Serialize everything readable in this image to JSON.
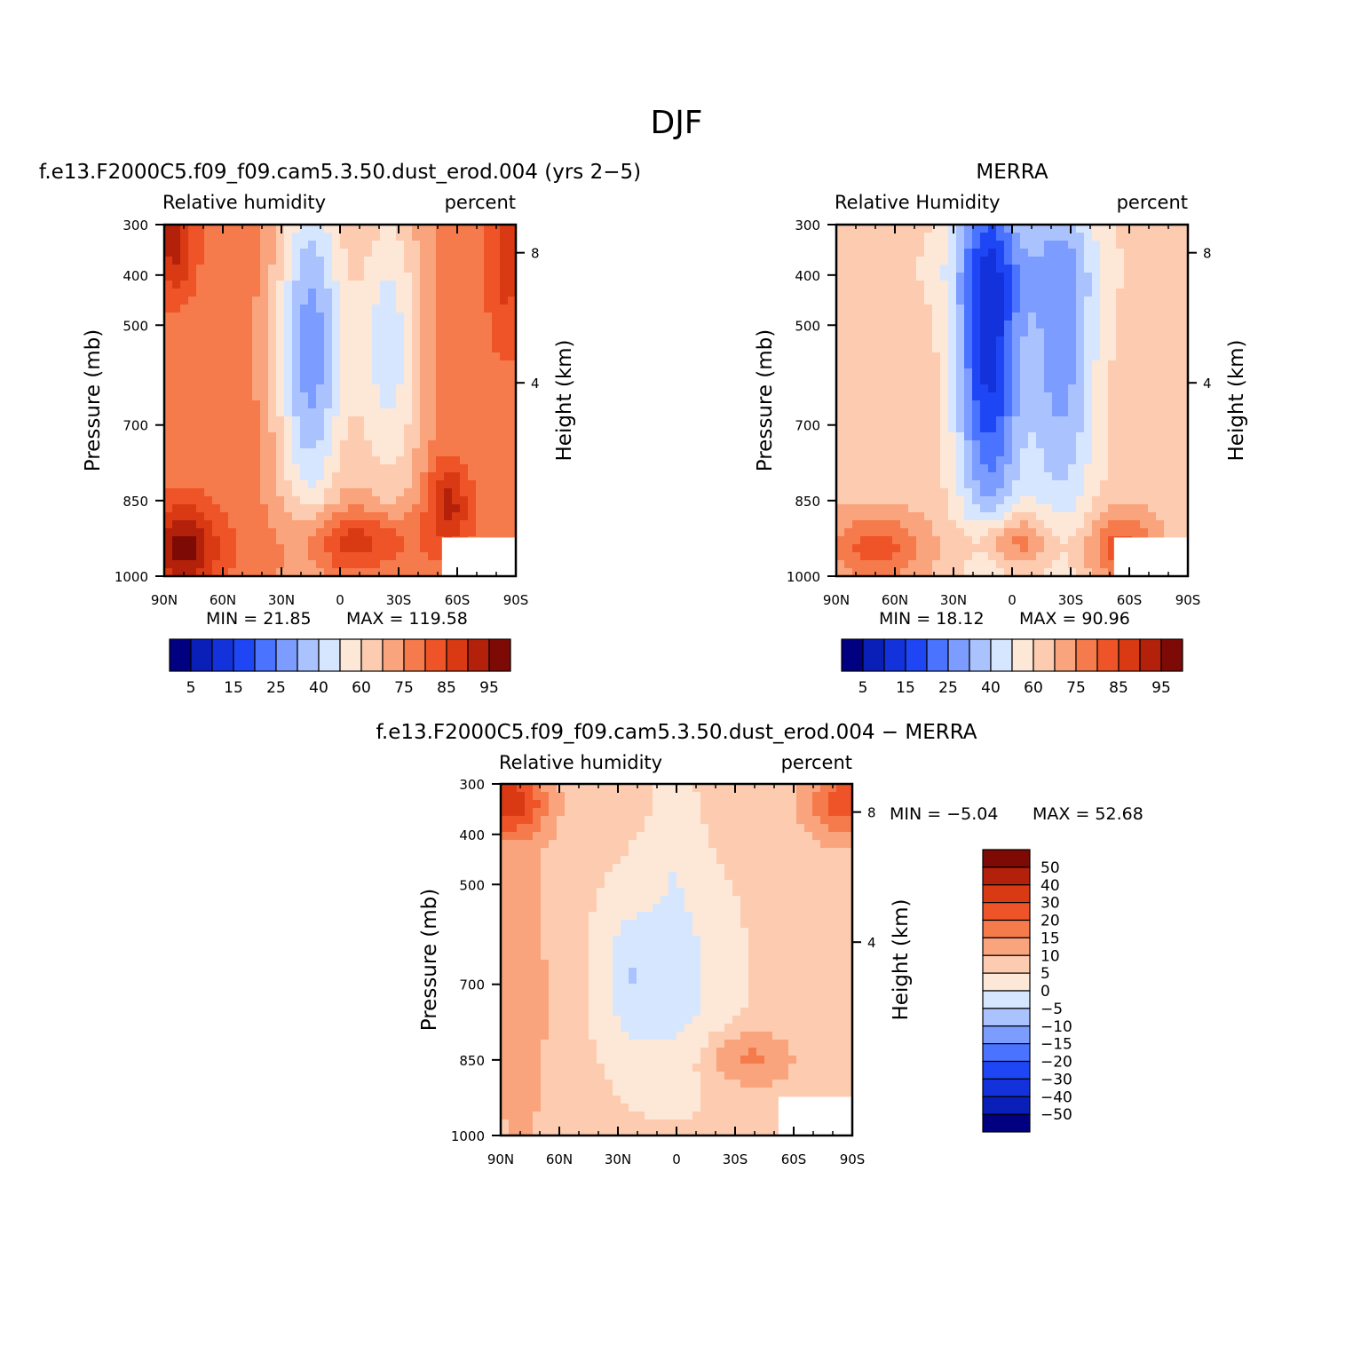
{
  "figure": {
    "title": "DJF"
  },
  "colors": {
    "rh_levels": [
      "#000080",
      "#0a1fb8",
      "#1432dc",
      "#1e46f5",
      "#4a74ff",
      "#7c9cff",
      "#aac3ff",
      "#d6e6ff",
      "#fde8d8",
      "#fccbb0",
      "#f9a47c",
      "#f57a4c",
      "#ee5428",
      "#d93a14",
      "#b4210a",
      "#7d0a05"
    ],
    "diff_levels": [
      "#000080",
      "#0a1fb8",
      "#1432dc",
      "#1e46f5",
      "#4a74ff",
      "#7c9cff",
      "#aac3ff",
      "#d6e6ff",
      "#fde8d8",
      "#fccbb0",
      "#f9a47c",
      "#f57a4c",
      "#ee5428",
      "#d93a14",
      "#b4210a",
      "#7d0a05"
    ]
  },
  "chart_data": [
    {
      "id": "model",
      "type": "heatmap",
      "title": "f.e13.F2000C5.f09_f09.cam5.3.50.dust_erod.004 (yrs 2−5)",
      "left_label": "Relative  humidity",
      "right_label": "percent",
      "xlabel": "",
      "ylabel": "Pressure  (mb)",
      "y2label": "Height  (km)",
      "x_ticks": [
        "90N",
        "60N",
        "30N",
        "0",
        "30S",
        "60S",
        "90S"
      ],
      "y_ticks": [
        "300",
        "400",
        "500",
        "700",
        "850",
        "1000"
      ],
      "y2_ticks": [
        "8",
        "4"
      ],
      "min_text": "MIN  =    21.85",
      "max_text": "MAX  =  119.58",
      "colorbar_labels": [
        "5",
        "15",
        "25",
        "40",
        "60",
        "75",
        "85",
        "95"
      ],
      "base_level": 11,
      "features": [
        {
          "lat": 15,
          "p": 0.35,
          "w": 0.1,
          "h": 0.55,
          "d": -6
        },
        {
          "lat": -25,
          "p": 0.35,
          "w": 0.1,
          "h": 0.5,
          "d": -4
        },
        {
          "lat": 5,
          "p": 0.9,
          "w": 0.12,
          "h": 0.1,
          "d": 2
        },
        {
          "lat": -20,
          "p": 0.9,
          "w": 0.12,
          "h": 0.08,
          "d": 2
        },
        {
          "lat": 80,
          "p": 0.92,
          "w": 0.1,
          "h": 0.12,
          "d": 4
        },
        {
          "lat": -55,
          "p": 0.8,
          "w": 0.06,
          "h": 0.12,
          "d": 3
        },
        {
          "lat": 85,
          "p": 0.05,
          "w": 0.06,
          "h": 0.15,
          "d": 3
        },
        {
          "lat": -85,
          "p": 0.1,
          "w": 0.05,
          "h": 0.25,
          "d": 2
        }
      ]
    },
    {
      "id": "obs",
      "type": "heatmap",
      "title": "MERRA",
      "left_label": "Relative  Humidity",
      "right_label": "percent",
      "xlabel": "",
      "ylabel": "Pressure  (mb)",
      "y2label": "Height  (km)",
      "x_ticks": [
        "90N",
        "60N",
        "30N",
        "0",
        "30S",
        "60S",
        "90S"
      ],
      "y_ticks": [
        "300",
        "400",
        "500",
        "700",
        "850",
        "1000"
      ],
      "y2_ticks": [
        "8",
        "4"
      ],
      "min_text": "MIN  =    18.12",
      "max_text": "MAX  =    90.96",
      "colorbar_labels": [
        "5",
        "15",
        "25",
        "40",
        "60",
        "75",
        "85",
        "95"
      ],
      "base_level": 9,
      "features": [
        {
          "lat": 12,
          "p": 0.33,
          "w": 0.09,
          "h": 0.55,
          "d": -7
        },
        {
          "lat": -25,
          "p": 0.35,
          "w": 0.1,
          "h": 0.55,
          "d": -4
        },
        {
          "lat": 0,
          "p": 0.12,
          "w": 0.3,
          "h": 0.15,
          "d": -1
        },
        {
          "lat": 70,
          "p": 0.92,
          "w": 0.14,
          "h": 0.1,
          "d": 3
        },
        {
          "lat": 0,
          "p": 0.9,
          "w": 0.12,
          "h": 0.08,
          "d": 3
        },
        {
          "lat": -55,
          "p": 0.92,
          "w": 0.1,
          "h": 0.1,
          "d": 3
        }
      ]
    },
    {
      "id": "diff",
      "type": "heatmap",
      "title": "f.e13.F2000C5.f09_f09.cam5.3.50.dust_erod.004  −  MERRA",
      "left_label": "Relative  humidity",
      "right_label": "percent",
      "xlabel": "",
      "ylabel": "Pressure  (mb)",
      "y2label": "Height  (km)",
      "x_ticks": [
        "90N",
        "60N",
        "30N",
        "0",
        "30S",
        "60S",
        "90S"
      ],
      "y_ticks": [
        "300",
        "400",
        "500",
        "700",
        "850",
        "1000"
      ],
      "y2_ticks": [
        "8",
        "4"
      ],
      "min_text": "MIN  =    −5.04",
      "max_text": "MAX  =    52.68",
      "colorbar_labels": [
        "50",
        "40",
        "30",
        "20",
        "15",
        "10",
        "5",
        "0",
        "−5",
        "−10",
        "−15",
        "−20",
        "−30",
        "−40",
        "−50"
      ],
      "base_level": 9,
      "features": [
        {
          "lat": 85,
          "p": 0.05,
          "w": 0.1,
          "h": 0.1,
          "d": 4
        },
        {
          "lat": -85,
          "p": 0.05,
          "w": 0.1,
          "h": 0.1,
          "d": 3
        },
        {
          "lat": 5,
          "p": 0.55,
          "w": 0.2,
          "h": 0.35,
          "d": -2
        },
        {
          "lat": 25,
          "p": 0.55,
          "w": 0.06,
          "h": 0.15,
          "d": -1
        },
        {
          "lat": -35,
          "p": 0.78,
          "w": 0.12,
          "h": 0.08,
          "d": 2
        },
        {
          "lat": 0,
          "p": 0.1,
          "w": 0.06,
          "h": 0.2,
          "d": -1
        },
        {
          "lat": 80,
          "p": 0.6,
          "w": 0.1,
          "h": 0.5,
          "d": 1
        }
      ]
    }
  ]
}
